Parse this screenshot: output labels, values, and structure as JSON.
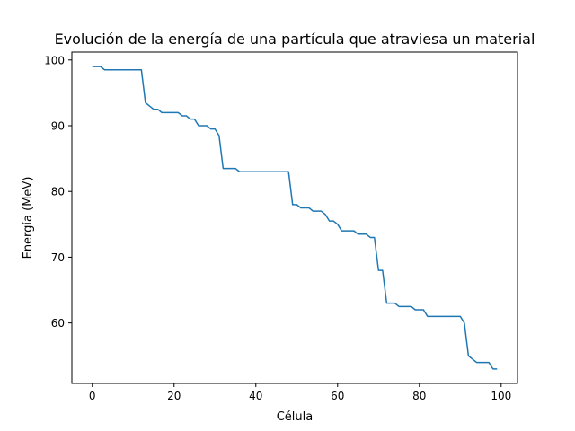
{
  "chart_data": {
    "type": "line",
    "title": "Evolución de la energía de una partícula que atraviesa un material",
    "xlabel": "Célula",
    "ylabel": "Energía (MeV)",
    "xlim": [
      -5,
      104
    ],
    "ylim": [
      50.8,
      101.2
    ],
    "xticks": [
      0,
      20,
      40,
      60,
      80,
      100
    ],
    "yticks": [
      60,
      70,
      80,
      90,
      100
    ],
    "grid": false,
    "line_color": "#1f77b4",
    "series": [
      {
        "x": [
          0,
          1,
          2,
          3,
          4,
          5,
          6,
          7,
          8,
          9,
          10,
          11,
          12,
          13,
          14,
          15,
          16,
          17,
          18,
          19,
          20,
          21,
          22,
          23,
          24,
          25,
          26,
          27,
          28,
          29,
          30,
          31,
          32,
          33,
          34,
          35,
          36,
          37,
          38,
          39,
          40,
          41,
          42,
          43,
          44,
          45,
          46,
          47,
          48,
          49,
          50,
          51,
          52,
          53,
          54,
          55,
          56,
          57,
          58,
          59,
          60,
          61,
          62,
          63,
          64,
          65,
          66,
          67,
          68,
          69,
          70,
          71,
          72,
          73,
          74,
          75,
          76,
          77,
          78,
          79,
          80,
          81,
          82,
          83,
          84,
          85,
          86,
          87,
          88,
          89,
          90,
          91,
          92,
          93,
          94,
          95,
          96,
          97,
          98,
          99
        ],
        "values": [
          99,
          99,
          99,
          98.5,
          98.5,
          98.5,
          98.5,
          98.5,
          98.5,
          98.5,
          98.5,
          98.5,
          98.5,
          93.5,
          93,
          92.5,
          92.5,
          92,
          92,
          92,
          92,
          92,
          91.5,
          91.5,
          91,
          91,
          90,
          90,
          90,
          89.5,
          89.5,
          88.5,
          83.5,
          83.5,
          83.5,
          83.5,
          83,
          83,
          83,
          83,
          83,
          83,
          83,
          83,
          83,
          83,
          83,
          83,
          83,
          78,
          78,
          77.5,
          77.5,
          77.5,
          77,
          77,
          77,
          76.5,
          75.5,
          75.5,
          75,
          74,
          74,
          74,
          74,
          73.5,
          73.5,
          73.5,
          73,
          73,
          68,
          68,
          63,
          63,
          63,
          62.5,
          62.5,
          62.5,
          62.5,
          62,
          62,
          62,
          61,
          61,
          61,
          61,
          61,
          61,
          61,
          61,
          61,
          60,
          55,
          54.5,
          54,
          54,
          54,
          54,
          53,
          53
        ]
      }
    ]
  }
}
